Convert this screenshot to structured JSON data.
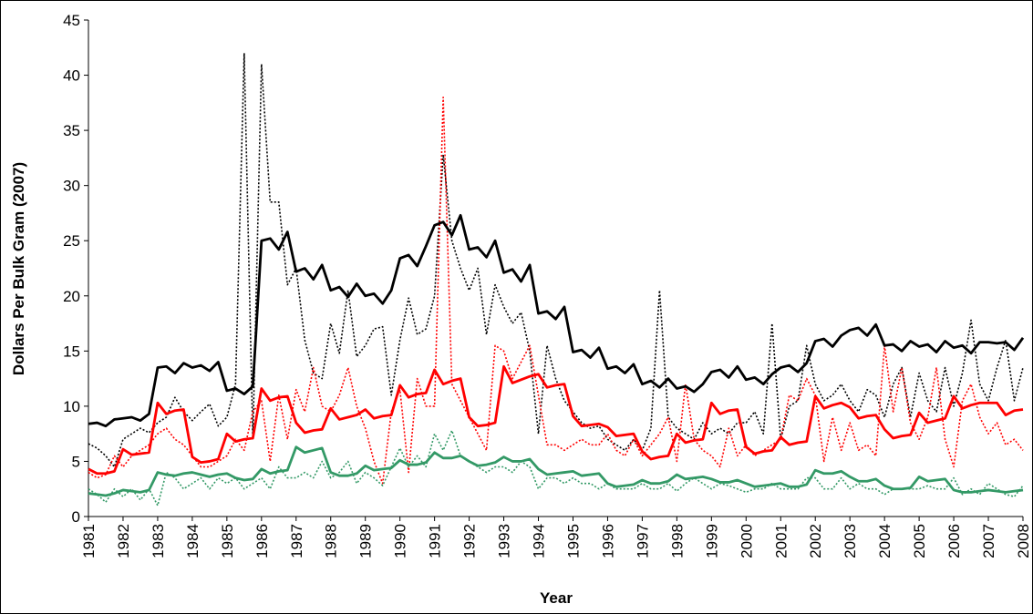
{
  "chart_data": {
    "type": "line",
    "y_label": "Dollars Per Bulk Gram (2007)",
    "x_label": "Year",
    "ylim": [
      0,
      45
    ],
    "yticks": [
      0,
      5,
      10,
      15,
      20,
      25,
      30,
      35,
      40,
      45
    ],
    "xlim": [
      1981,
      2008
    ],
    "xticks": [
      1981,
      1982,
      1983,
      1984,
      1985,
      1986,
      1987,
      1988,
      1989,
      1990,
      1991,
      1992,
      1993,
      1994,
      1995,
      1996,
      1997,
      1998,
      1999,
      2000,
      2001,
      2002,
      2003,
      2004,
      2005,
      2006,
      2007,
      2008
    ],
    "x": [
      1981,
      1981.25,
      1981.5,
      1981.75,
      1982,
      1982.25,
      1982.5,
      1982.75,
      1983,
      1983.25,
      1983.5,
      1983.75,
      1984,
      1984.25,
      1984.5,
      1984.75,
      1985,
      1985.25,
      1985.5,
      1985.75,
      1986,
      1986.25,
      1986.5,
      1986.75,
      1987,
      1987.25,
      1987.5,
      1987.75,
      1988,
      1988.25,
      1988.5,
      1988.75,
      1989,
      1989.25,
      1989.5,
      1989.75,
      1990,
      1990.25,
      1990.5,
      1990.75,
      1991,
      1991.25,
      1991.5,
      1991.75,
      1992,
      1992.25,
      1992.5,
      1992.75,
      1993,
      1993.25,
      1993.5,
      1993.75,
      1994,
      1994.25,
      1994.5,
      1994.75,
      1995,
      1995.25,
      1995.5,
      1995.75,
      1996,
      1996.25,
      1996.5,
      1996.75,
      1997,
      1997.25,
      1997.5,
      1997.75,
      1998,
      1998.25,
      1998.5,
      1998.75,
      1999,
      1999.25,
      1999.5,
      1999.75,
      2000,
      2000.25,
      2000.5,
      2000.75,
      2001,
      2001.25,
      2001.5,
      2001.75,
      2002,
      2002.25,
      2002.5,
      2002.75,
      2003,
      2003.25,
      2003.5,
      2003.75,
      2004,
      2004.25,
      2004.5,
      2004.75,
      2005,
      2005.25,
      2005.5,
      2005.75,
      2006,
      2006.25,
      2006.5,
      2006.75,
      2007,
      2007.25,
      2007.5,
      2007.75,
      2008
    ],
    "series": [
      {
        "color": "#000000",
        "style": "dotted",
        "values": [
          6.6,
          6.2,
          5.5,
          4.5,
          7.0,
          7.5,
          8.0,
          7.6,
          8.5,
          9.0,
          10.8,
          9.5,
          8.7,
          9.5,
          10.2,
          8.2,
          9.0,
          12.0,
          42.0,
          7.0,
          41.0,
          28.5,
          28.5,
          21.0,
          22.5,
          16.0,
          13.0,
          12.5,
          17.5,
          14.8,
          20.5,
          14.5,
          15.5,
          17.0,
          17.2,
          11.0,
          16.0,
          19.8,
          16.5,
          17.0,
          20.0,
          32.8,
          25.0,
          22.5,
          20.5,
          22.5,
          16.5,
          21.0,
          19.0,
          17.5,
          18.5,
          15.0,
          7.5,
          15.5,
          12.5,
          10.5,
          9.5,
          8.5,
          8.0,
          8.2,
          7.0,
          6.5,
          6.0,
          7.0,
          6.0,
          8.0,
          20.5,
          9.0,
          8.0,
          7.5,
          7.0,
          8.5,
          7.5,
          8.0,
          7.5,
          8.5,
          8.5,
          9.5,
          7.5,
          17.5,
          7.0,
          10.0,
          10.5,
          15.5,
          12.0,
          10.5,
          11.0,
          12.0,
          10.5,
          9.5,
          11.5,
          11.0,
          9.0,
          12.0,
          13.5,
          9.0,
          13.0,
          10.5,
          9.5,
          13.5,
          10.0,
          13.0,
          17.8,
          12.0,
          10.5,
          13.5,
          16.0,
          10.5,
          13.5
        ]
      },
      {
        "color": "#ff0000",
        "style": "dotted",
        "values": [
          4.0,
          3.5,
          3.8,
          5.5,
          4.5,
          5.5,
          6.0,
          6.5,
          7.5,
          8.0,
          7.0,
          6.5,
          5.5,
          4.5,
          4.5,
          5.0,
          5.5,
          7.0,
          6.0,
          9.5,
          10.5,
          5.0,
          11.0,
          7.0,
          11.5,
          9.5,
          13.5,
          10.0,
          9.5,
          11.0,
          13.5,
          10.0,
          8.0,
          5.0,
          3.0,
          9.5,
          11.5,
          4.0,
          12.5,
          10.0,
          10.0,
          38.0,
          12.0,
          10.5,
          9.0,
          7.5,
          6.0,
          15.5,
          15.0,
          12.5,
          14.0,
          15.5,
          11.0,
          6.5,
          6.5,
          6.0,
          6.5,
          7.0,
          6.5,
          6.5,
          7.5,
          6.0,
          5.5,
          7.0,
          5.5,
          6.5,
          7.5,
          9.0,
          5.0,
          12.0,
          7.0,
          6.0,
          5.5,
          4.5,
          8.0,
          5.5,
          6.5,
          5.5,
          6.0,
          6.5,
          7.0,
          11.0,
          10.5,
          12.5,
          11.0,
          5.0,
          9.0,
          6.0,
          8.5,
          6.0,
          6.5,
          5.5,
          15.5,
          9.5,
          13.5,
          8.5,
          7.0,
          9.0,
          13.5,
          7.0,
          4.5,
          10.5,
          12.0,
          9.0,
          7.5,
          8.5,
          6.5,
          7.0,
          6.0
        ]
      },
      {
        "color": "#339966",
        "style": "dotted",
        "values": [
          2.5,
          2.0,
          1.3,
          2.5,
          1.8,
          2.5,
          1.5,
          2.5,
          1.0,
          4.0,
          3.5,
          2.5,
          3.0,
          3.5,
          2.5,
          3.5,
          3.0,
          3.5,
          2.5,
          3.0,
          3.5,
          2.5,
          4.5,
          3.5,
          3.5,
          4.0,
          3.5,
          5.0,
          3.5,
          4.0,
          5.0,
          3.0,
          4.0,
          3.5,
          2.8,
          4.5,
          6.2,
          4.5,
          5.5,
          4.5,
          7.5,
          6.0,
          7.8,
          5.5,
          5.0,
          4.5,
          4.0,
          4.5,
          4.5,
          4.0,
          5.0,
          4.5,
          2.5,
          3.5,
          3.5,
          3.0,
          3.5,
          3.0,
          3.0,
          2.5,
          3.0,
          2.5,
          2.5,
          2.5,
          3.0,
          2.5,
          2.5,
          3.0,
          2.3,
          3.0,
          3.5,
          3.0,
          2.5,
          3.0,
          2.8,
          2.5,
          2.2,
          2.5,
          2.5,
          3.0,
          2.5,
          2.5,
          2.5,
          3.5,
          3.5,
          2.5,
          2.5,
          3.5,
          2.5,
          3.0,
          2.5,
          2.5,
          2.0,
          2.5,
          2.5,
          2.5,
          2.5,
          2.8,
          2.5,
          2.5,
          3.5,
          2.0,
          2.5,
          2.0,
          3.0,
          2.5,
          2.0,
          1.8,
          2.8
        ]
      },
      {
        "color": "#000000",
        "style": "solid",
        "values": [
          8.4,
          8.5,
          8.2,
          8.8,
          8.9,
          9.0,
          8.7,
          9.3,
          13.5,
          13.6,
          13.0,
          13.9,
          13.5,
          13.7,
          13.2,
          14.0,
          11.4,
          11.6,
          11.1,
          11.8,
          25.0,
          25.2,
          24.2,
          25.8,
          22.2,
          22.5,
          21.5,
          22.8,
          20.5,
          20.8,
          19.9,
          21.1,
          20.0,
          20.2,
          19.3,
          20.5,
          23.4,
          23.7,
          22.7,
          24.5,
          26.4,
          26.7,
          25.5,
          27.3,
          24.2,
          24.4,
          23.5,
          25.0,
          22.1,
          22.4,
          21.3,
          22.8,
          18.4,
          18.6,
          17.9,
          19.0,
          14.9,
          15.1,
          14.4,
          15.3,
          13.4,
          13.6,
          13.0,
          13.8,
          12.0,
          12.3,
          11.7,
          12.5,
          11.6,
          11.8,
          11.3,
          12.0,
          13.1,
          13.3,
          12.6,
          13.6,
          12.4,
          12.6,
          12.0,
          12.9,
          13.5,
          13.7,
          13.1,
          13.9,
          15.9,
          16.1,
          15.4,
          16.4,
          16.9,
          17.1,
          16.4,
          17.4,
          15.5,
          15.6,
          15.0,
          15.9,
          15.4,
          15.6,
          14.9,
          15.9,
          15.3,
          15.5,
          14.8,
          15.8,
          15.8,
          15.7,
          15.8,
          15.1,
          16.2
        ]
      },
      {
        "color": "#ff0000",
        "style": "solid",
        "values": [
          4.3,
          3.9,
          3.9,
          4.1,
          6.1,
          5.6,
          5.7,
          5.8,
          10.3,
          9.3,
          9.6,
          9.7,
          5.4,
          4.9,
          5.0,
          5.2,
          7.5,
          6.8,
          7.0,
          7.1,
          11.6,
          10.5,
          10.8,
          10.9,
          8.5,
          7.6,
          7.8,
          7.9,
          9.8,
          8.8,
          9.0,
          9.2,
          9.7,
          8.9,
          9.1,
          9.2,
          11.9,
          10.8,
          11.1,
          11.2,
          13.3,
          12.0,
          12.3,
          12.5,
          9.0,
          8.2,
          8.3,
          8.5,
          13.6,
          12.1,
          12.4,
          12.7,
          12.9,
          11.7,
          11.9,
          12.0,
          9.1,
          8.2,
          8.3,
          8.4,
          8.1,
          7.3,
          7.4,
          7.5,
          5.9,
          5.2,
          5.4,
          5.5,
          7.5,
          6.7,
          6.9,
          7.0,
          10.3,
          9.3,
          9.6,
          9.7,
          6.3,
          5.7,
          5.9,
          6.0,
          7.2,
          6.5,
          6.7,
          6.8,
          10.9,
          9.8,
          10.1,
          10.3,
          9.9,
          8.9,
          9.1,
          9.2,
          7.9,
          7.1,
          7.3,
          7.4,
          9.4,
          8.5,
          8.7,
          8.9,
          10.9,
          9.8,
          10.1,
          10.3,
          10.3,
          10.3,
          9.2,
          9.6,
          9.7
        ]
      },
      {
        "color": "#339966",
        "style": "solid",
        "values": [
          2.1,
          2.0,
          1.9,
          2.1,
          2.4,
          2.3,
          2.2,
          2.4,
          4.0,
          3.8,
          3.7,
          3.9,
          4.0,
          3.8,
          3.6,
          3.8,
          3.9,
          3.5,
          3.3,
          3.4,
          4.3,
          3.9,
          4.1,
          4.2,
          6.3,
          5.8,
          6.0,
          6.2,
          4.0,
          3.7,
          3.7,
          3.9,
          4.6,
          4.2,
          4.3,
          4.4,
          5.1,
          4.7,
          4.7,
          4.9,
          5.8,
          5.3,
          5.3,
          5.5,
          5.0,
          4.6,
          4.7,
          4.9,
          5.4,
          5.0,
          5.0,
          5.2,
          4.3,
          3.8,
          3.9,
          4.0,
          4.1,
          3.7,
          3.8,
          3.9,
          3.0,
          2.7,
          2.8,
          2.9,
          3.3,
          3.0,
          3.0,
          3.2,
          3.8,
          3.4,
          3.5,
          3.6,
          3.4,
          3.1,
          3.1,
          3.3,
          3.0,
          2.7,
          2.8,
          2.9,
          3.0,
          2.7,
          2.7,
          2.9,
          4.2,
          3.9,
          3.9,
          4.1,
          3.6,
          3.2,
          3.2,
          3.4,
          2.8,
          2.5,
          2.5,
          2.6,
          3.6,
          3.2,
          3.3,
          3.4,
          2.4,
          2.2,
          2.2,
          2.3,
          2.4,
          2.3,
          2.2,
          2.3,
          2.4
        ]
      }
    ]
  }
}
